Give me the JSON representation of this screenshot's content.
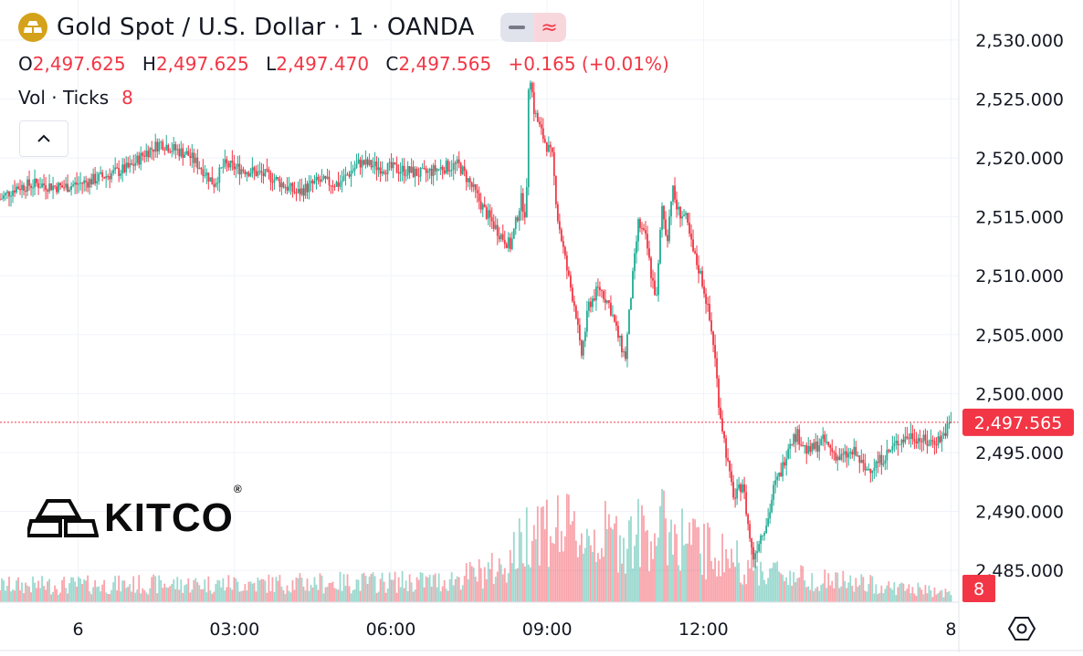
{
  "header": {
    "title": "Gold Spot / U.S. Dollar · 1 · OANDA",
    "symbol_icon": "gold-bars-icon",
    "pill_icons": [
      "minus-icon",
      "wave-icon"
    ],
    "pill_wave_glyph": "≈"
  },
  "ohlc": {
    "o_label": "O",
    "o_value": "2,497.625",
    "h_label": "H",
    "h_value": "2,497.625",
    "l_label": "L",
    "l_value": "2,497.470",
    "c_label": "C",
    "c_value": "2,497.565",
    "change": "+0.165 (+0.01%)"
  },
  "volume_legend": {
    "label": "Vol · Ticks",
    "value": "8"
  },
  "logo": {
    "text": "KITCO",
    "mark": "®"
  },
  "colors": {
    "up": "#22ab94",
    "down": "#f23645",
    "grid": "#f0f3fa",
    "text": "#131722",
    "last_price_bg": "#f23645",
    "gold": "#d4a21a"
  },
  "chart_data": {
    "type": "candlestick",
    "title": "Gold Spot / U.S. Dollar · 1 · OANDA",
    "y_ticks": [
      "2,530.000",
      "2,525.000",
      "2,520.000",
      "2,515.000",
      "2,510.000",
      "2,505.000",
      "2,500.000",
      "2,495.000",
      "2,490.000",
      "2,485.000"
    ],
    "y_tick_values": [
      2530,
      2525,
      2520,
      2515,
      2510,
      2505,
      2500,
      2495,
      2490,
      2485
    ],
    "ylim": [
      2482.3,
      2533.4
    ],
    "x_tick_labels": [
      "6",
      "03:00",
      "06:00",
      "09:00",
      "12:00",
      "8"
    ],
    "x_tick_hours": [
      0,
      3,
      6,
      9,
      12,
      16.75
    ],
    "x_range_hours": [
      -1.5,
      16.9
    ],
    "last_price": "2,497.565",
    "last_price_value": 2497.565,
    "last_volume": "8",
    "price_path": [
      [
        -1.5,
        2516.5
      ],
      [
        -1.2,
        2517.5
      ],
      [
        -0.8,
        2517.8
      ],
      [
        -0.3,
        2517.5
      ],
      [
        0.2,
        2518.0
      ],
      [
        0.6,
        2518.6
      ],
      [
        1.0,
        2519.2
      ],
      [
        1.3,
        2520.5
      ],
      [
        1.6,
        2521.3
      ],
      [
        1.8,
        2520.8
      ],
      [
        2.1,
        2520.3
      ],
      [
        2.4,
        2519.0
      ],
      [
        2.6,
        2517.8
      ],
      [
        2.8,
        2519.4
      ],
      [
        3.2,
        2519.0
      ],
      [
        3.7,
        2518.4
      ],
      [
        4.2,
        2517.0
      ],
      [
        4.6,
        2518.0
      ],
      [
        5.0,
        2517.8
      ],
      [
        5.4,
        2519.6
      ],
      [
        5.8,
        2519.2
      ],
      [
        6.2,
        2519.0
      ],
      [
        6.6,
        2518.6
      ],
      [
        7.0,
        2519.2
      ],
      [
        7.3,
        2519.4
      ],
      [
        7.5,
        2518.0
      ],
      [
        7.8,
        2515.5
      ],
      [
        8.1,
        2513.5
      ],
      [
        8.3,
        2512.5
      ],
      [
        8.5,
        2516.5
      ],
      [
        8.6,
        2515.0
      ],
      [
        8.65,
        2528.0
      ],
      [
        8.75,
        2524.0
      ],
      [
        8.9,
        2522.0
      ],
      [
        9.1,
        2520.0
      ],
      [
        9.2,
        2515.0
      ],
      [
        9.4,
        2510.0
      ],
      [
        9.55,
        2507.0
      ],
      [
        9.65,
        2503.0
      ],
      [
        9.8,
        2507.5
      ],
      [
        10.0,
        2509.0
      ],
      [
        10.2,
        2507.5
      ],
      [
        10.35,
        2505.0
      ],
      [
        10.5,
        2503.0
      ],
      [
        10.6,
        2508.0
      ],
      [
        10.75,
        2514.5
      ],
      [
        10.9,
        2513.0
      ],
      [
        11.0,
        2510.0
      ],
      [
        11.1,
        2508.0
      ],
      [
        11.2,
        2516.0
      ],
      [
        11.3,
        2513.0
      ],
      [
        11.4,
        2517.5
      ],
      [
        11.5,
        2515.5
      ],
      [
        11.65,
        2515.0
      ],
      [
        11.8,
        2512.0
      ],
      [
        11.95,
        2510.0
      ],
      [
        12.05,
        2508.0
      ],
      [
        12.2,
        2504.0
      ],
      [
        12.3,
        2499.0
      ],
      [
        12.4,
        2496.0
      ],
      [
        12.5,
        2493.0
      ],
      [
        12.6,
        2491.0
      ],
      [
        12.75,
        2492.5
      ],
      [
        12.85,
        2489.0
      ],
      [
        12.95,
        2486.0
      ],
      [
        13.1,
        2488.0
      ],
      [
        13.25,
        2489.5
      ],
      [
        13.35,
        2492.0
      ],
      [
        13.5,
        2493.5
      ],
      [
        13.65,
        2496.0
      ],
      [
        13.8,
        2496.5
      ],
      [
        14.0,
        2495.0
      ],
      [
        14.3,
        2496.0
      ],
      [
        14.6,
        2494.5
      ],
      [
        14.9,
        2495.0
      ],
      [
        15.1,
        2493.5
      ],
      [
        15.3,
        2494.0
      ],
      [
        15.55,
        2495.0
      ],
      [
        15.75,
        2496.0
      ],
      [
        16.0,
        2496.5
      ],
      [
        16.3,
        2495.8
      ],
      [
        16.55,
        2496.2
      ],
      [
        16.75,
        2497.5
      ]
    ],
    "volume_ylim": [
      0,
      160
    ],
    "volume_profile": [
      [
        -1.5,
        22
      ],
      [
        4.0,
        25
      ],
      [
        7.0,
        28
      ],
      [
        8.1,
        45
      ],
      [
        8.55,
        80
      ],
      [
        8.7,
        110
      ],
      [
        9.5,
        90
      ],
      [
        10.5,
        85
      ],
      [
        11.3,
        100
      ],
      [
        12.0,
        70
      ],
      [
        12.5,
        60
      ],
      [
        13.0,
        45
      ],
      [
        14.0,
        32
      ],
      [
        16.75,
        12
      ]
    ]
  }
}
